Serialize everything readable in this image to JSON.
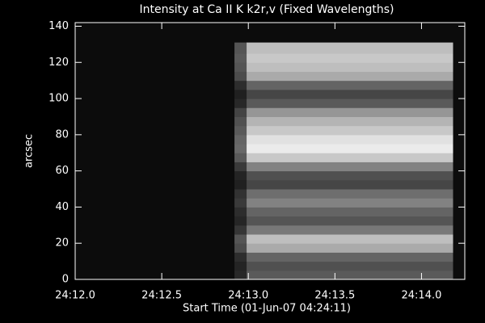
{
  "chart_data": {
    "type": "heatmap",
    "title": "Intensity at Ca II K k2r,v (Fixed Wavelengths)",
    "x_label": "Start Time (01-Jun-07 04:24:11)",
    "y_label": "arcsec",
    "xlim": [
      12.0,
      14.25
    ],
    "ylim": [
      0,
      142
    ],
    "xticks": [
      {
        "value": 12.0,
        "label": "24:12.0"
      },
      {
        "value": 12.5,
        "label": "24:12.5"
      },
      {
        "value": 13.0,
        "label": "24:13.0"
      },
      {
        "value": 13.5,
        "label": "24:13.5"
      },
      {
        "value": 14.0,
        "label": "24:14.0"
      }
    ],
    "yticks": [
      0,
      20,
      40,
      60,
      80,
      100,
      120,
      140
    ],
    "colormap": "gray",
    "x_edges": [
      12.92,
      12.99,
      14.18
    ],
    "y_edges": [
      0,
      5,
      10,
      15,
      20,
      25,
      30,
      35,
      40,
      45,
      50,
      55,
      60,
      65,
      70,
      75,
      80,
      85,
      90,
      95,
      100,
      105,
      110,
      115,
      120,
      125,
      131
    ],
    "z": [
      [
        40,
        90
      ],
      [
        36,
        80
      ],
      [
        45,
        100
      ],
      [
        76,
        170
      ],
      [
        85,
        190
      ],
      [
        54,
        120
      ],
      [
        38,
        85
      ],
      [
        45,
        100
      ],
      [
        58,
        130
      ],
      [
        50,
        110
      ],
      [
        32,
        70
      ],
      [
        36,
        80
      ],
      [
        58,
        130
      ],
      [
        90,
        200
      ],
      [
        105,
        235
      ],
      [
        101,
        225
      ],
      [
        90,
        200
      ],
      [
        81,
        180
      ],
      [
        68,
        150
      ],
      [
        40,
        90
      ],
      [
        32,
        70
      ],
      [
        45,
        100
      ],
      [
        76,
        170
      ],
      [
        85,
        190
      ],
      [
        90,
        200
      ],
      [
        85,
        190
      ]
    ]
  }
}
